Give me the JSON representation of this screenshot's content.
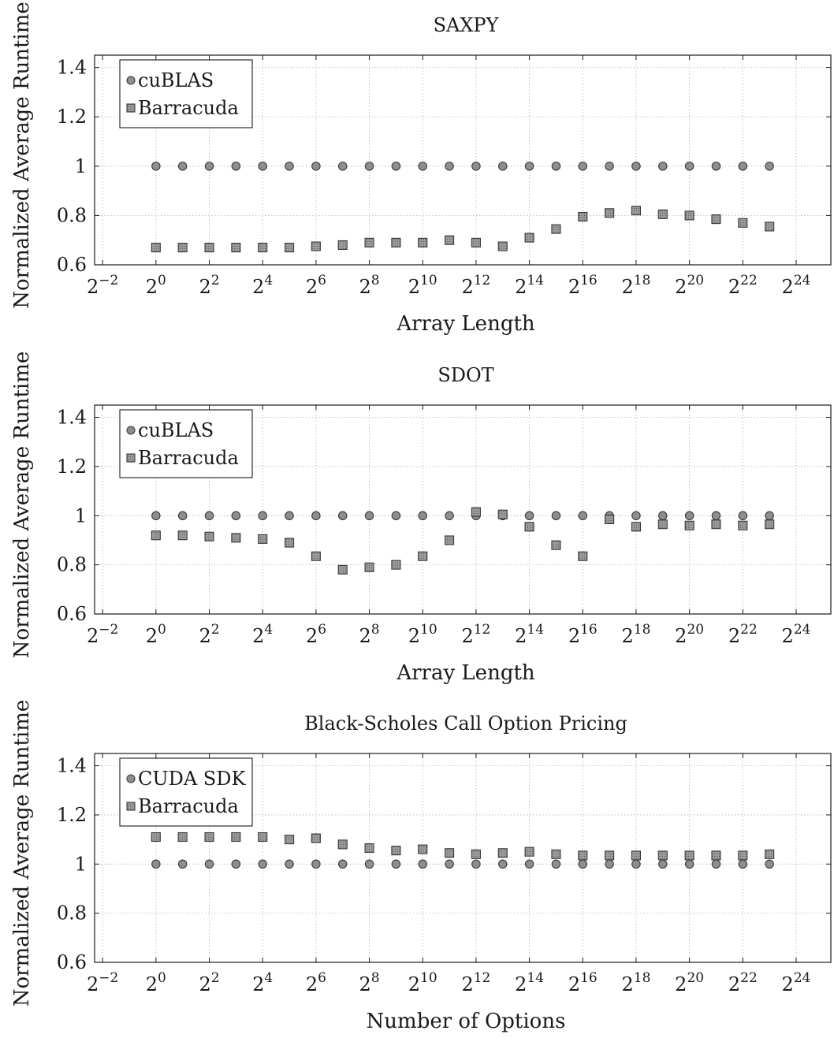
{
  "chart_data": [
    {
      "type": "scatter",
      "title": "SAXPY",
      "xlabel": "Array Length",
      "ylabel": "Normalized Average Runtime",
      "x_scale": "log2",
      "xlim_exponent": [
        -2.3,
        25.3
      ],
      "ylim": [
        0.6,
        1.45
      ],
      "xtick_exponents": [
        -2,
        0,
        2,
        4,
        6,
        8,
        10,
        12,
        14,
        16,
        18,
        20,
        22,
        24
      ],
      "yticks": [
        0.6,
        0.8,
        1,
        1.2,
        1.4
      ],
      "ytick_labels": [
        "0.6",
        "0.8",
        "1",
        "1.2",
        "1.4"
      ],
      "grid": true,
      "legend_position": "top-left",
      "x_exponents": [
        0,
        1,
        2,
        3,
        4,
        5,
        6,
        7,
        8,
        9,
        10,
        11,
        12,
        13,
        14,
        15,
        16,
        17,
        18,
        19,
        20,
        21,
        22,
        23
      ],
      "series": [
        {
          "name": "cuBLAS",
          "marker": "circle",
          "values": [
            1.0,
            1.0,
            1.0,
            1.0,
            1.0,
            1.0,
            1.0,
            1.0,
            1.0,
            1.0,
            1.0,
            1.0,
            1.0,
            1.0,
            1.0,
            1.0,
            1.0,
            1.0,
            1.0,
            1.0,
            1.0,
            1.0,
            1.0,
            1.0
          ]
        },
        {
          "name": "Barracuda",
          "marker": "square",
          "values": [
            0.67,
            0.67,
            0.67,
            0.67,
            0.67,
            0.67,
            0.675,
            0.68,
            0.69,
            0.69,
            0.69,
            0.7,
            0.69,
            0.675,
            0.71,
            0.745,
            0.795,
            0.81,
            0.82,
            0.805,
            0.8,
            0.785,
            0.77,
            0.755
          ]
        }
      ]
    },
    {
      "type": "scatter",
      "title": "SDOT",
      "xlabel": "Array Length",
      "ylabel": "Normalized Average Runtime",
      "x_scale": "log2",
      "xlim_exponent": [
        -2.3,
        25.3
      ],
      "ylim": [
        0.6,
        1.45
      ],
      "xtick_exponents": [
        -2,
        0,
        2,
        4,
        6,
        8,
        10,
        12,
        14,
        16,
        18,
        20,
        22,
        24
      ],
      "yticks": [
        0.6,
        0.8,
        1,
        1.2,
        1.4
      ],
      "ytick_labels": [
        "0.6",
        "0.8",
        "1",
        "1.2",
        "1.4"
      ],
      "grid": true,
      "legend_position": "top-left",
      "x_exponents": [
        0,
        1,
        2,
        3,
        4,
        5,
        6,
        7,
        8,
        9,
        10,
        11,
        12,
        13,
        14,
        15,
        16,
        17,
        18,
        19,
        20,
        21,
        22,
        23
      ],
      "series": [
        {
          "name": "cuBLAS",
          "marker": "circle",
          "values": [
            1.0,
            1.0,
            1.0,
            1.0,
            1.0,
            1.0,
            1.0,
            1.0,
            1.0,
            1.0,
            1.0,
            1.0,
            1.0,
            1.0,
            1.0,
            1.0,
            1.0,
            1.0,
            1.0,
            1.0,
            1.0,
            1.0,
            1.0,
            1.0
          ]
        },
        {
          "name": "Barracuda",
          "marker": "square",
          "values": [
            0.92,
            0.92,
            0.915,
            0.91,
            0.905,
            0.89,
            0.835,
            0.78,
            0.79,
            0.8,
            0.835,
            0.9,
            1.015,
            1.005,
            0.955,
            0.88,
            0.835,
            0.985,
            0.955,
            0.965,
            0.96,
            0.965,
            0.96,
            0.965
          ]
        }
      ]
    },
    {
      "type": "scatter",
      "title": "Black-Scholes Call Option Pricing",
      "xlabel": "Number of Options",
      "ylabel": "Normalized Average Runtime",
      "x_scale": "log2",
      "xlim_exponent": [
        -2.3,
        25.3
      ],
      "ylim": [
        0.6,
        1.45
      ],
      "xtick_exponents": [
        -2,
        0,
        2,
        4,
        6,
        8,
        10,
        12,
        14,
        16,
        18,
        20,
        22,
        24
      ],
      "yticks": [
        0.6,
        0.8,
        1,
        1.2,
        1.4
      ],
      "ytick_labels": [
        "0.6",
        "0.8",
        "1",
        "1.2",
        "1.4"
      ],
      "grid": true,
      "legend_position": "top-left",
      "x_exponents": [
        0,
        1,
        2,
        3,
        4,
        5,
        6,
        7,
        8,
        9,
        10,
        11,
        12,
        13,
        14,
        15,
        16,
        17,
        18,
        19,
        20,
        21,
        22,
        23
      ],
      "series": [
        {
          "name": "CUDA SDK",
          "marker": "circle",
          "values": [
            1.0,
            1.0,
            1.0,
            1.0,
            1.0,
            1.0,
            1.0,
            1.0,
            1.0,
            1.0,
            1.0,
            1.0,
            1.0,
            1.0,
            1.0,
            1.0,
            1.0,
            1.0,
            1.0,
            1.0,
            1.0,
            1.0,
            1.0,
            1.0
          ]
        },
        {
          "name": "Barracuda",
          "marker": "square",
          "values": [
            1.11,
            1.11,
            1.11,
            1.11,
            1.11,
            1.1,
            1.105,
            1.08,
            1.065,
            1.055,
            1.06,
            1.045,
            1.04,
            1.045,
            1.05,
            1.04,
            1.035,
            1.035,
            1.035,
            1.035,
            1.035,
            1.035,
            1.035,
            1.04
          ]
        }
      ]
    }
  ],
  "colors": {
    "marker_fill": "#8e8e8e",
    "marker_stroke": "#3a3a3a",
    "axis": "#1a1a1a",
    "grid": "#b4b4b4"
  }
}
